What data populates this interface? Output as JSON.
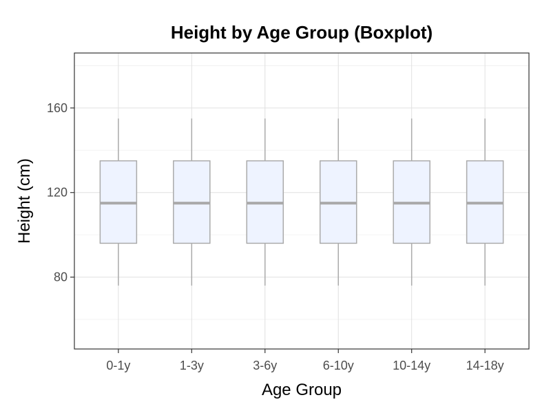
{
  "chart_data": {
    "type": "boxplot",
    "title": "Height by Age Group (Boxplot)",
    "xlabel": "Age Group",
    "ylabel": "Height (cm)",
    "categories": [
      "0-1y",
      "1-3y",
      "3-6y",
      "6-10y",
      "10-14y",
      "14-18y"
    ],
    "boxes": [
      {
        "category": "0-1y",
        "whisker_low": 76,
        "q1": 96,
        "median": 115,
        "q3": 135,
        "whisker_high": 155
      },
      {
        "category": "1-3y",
        "whisker_low": 76,
        "q1": 96,
        "median": 115,
        "q3": 135,
        "whisker_high": 155
      },
      {
        "category": "3-6y",
        "whisker_low": 76,
        "q1": 96,
        "median": 115,
        "q3": 135,
        "whisker_high": 155
      },
      {
        "category": "6-10y",
        "whisker_low": 76,
        "q1": 96,
        "median": 115,
        "q3": 135,
        "whisker_high": 155
      },
      {
        "category": "10-14y",
        "whisker_low": 76,
        "q1": 96,
        "median": 115,
        "q3": 135,
        "whisker_high": 155
      },
      {
        "category": "14-18y",
        "whisker_low": 76,
        "q1": 96,
        "median": 115,
        "q3": 135,
        "whisker_high": 155
      }
    ],
    "ylim": [
      46,
      186
    ],
    "yticks": [
      80,
      120,
      160
    ],
    "y_minor_ticks": [
      60,
      100,
      140,
      180
    ],
    "grid": true,
    "legend": "none",
    "colors": {
      "box_fill": "#eef3ff",
      "box_stroke": "#aaaaaa",
      "median": "#aaaaaa",
      "whisker": "#aaaaaa",
      "grid_major": "#e0e0e0",
      "grid_minor": "#efefef",
      "panel_border": "#333333"
    }
  }
}
